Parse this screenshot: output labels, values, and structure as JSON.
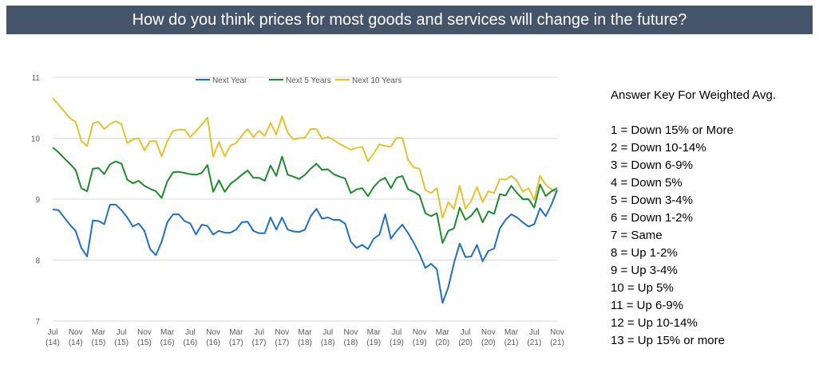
{
  "header": {
    "title": "How do you think prices for most goods and services will change in the future?"
  },
  "answer_key": {
    "title": "Answer Key For Weighted Avg.",
    "items": [
      "1 = Down 15% or More",
      "2 = Down 10-14%",
      "3 = Down 6-9%",
      "4 = Down 5%",
      "5 = Down 3-4%",
      "6 = Down 1-2%",
      "7 = Same",
      "8 = Up 1-2%",
      "9 = Up 3-4%",
      "10 = Up 5%",
      "11 = Up 6-9%",
      "12 = Up 10-14%",
      "13 = Up 15% or more"
    ]
  },
  "chart_data": {
    "type": "line",
    "title": "",
    "xlabel": "",
    "ylabel": "",
    "ylim": [
      7,
      11
    ],
    "yticks": [
      7,
      8,
      9,
      10,
      11
    ],
    "grid": true,
    "legend_position": "top-center",
    "x": [
      "Jul 2014",
      "Aug 2014",
      "Sep 2014",
      "Oct 2014",
      "Nov 2014",
      "Dec 2014",
      "Jan 2015",
      "Feb 2015",
      "Mar 2015",
      "Apr 2015",
      "May 2015",
      "Jun 2015",
      "Jul 2015",
      "Aug 2015",
      "Sep 2015",
      "Oct 2015",
      "Nov 2015",
      "Dec 2015",
      "Jan 2016",
      "Feb 2016",
      "Mar 2016",
      "Apr 2016",
      "May 2016",
      "Jun 2016",
      "Jul 2016",
      "Aug 2016",
      "Sep 2016",
      "Oct 2016",
      "Nov 2016",
      "Dec 2016",
      "Jan 2017",
      "Feb 2017",
      "Mar 2017",
      "Apr 2017",
      "May 2017",
      "Jun 2017",
      "Jul 2017",
      "Aug 2017",
      "Sep 2017",
      "Oct 2017",
      "Nov 2017",
      "Dec 2017",
      "Jan 2018",
      "Feb 2018",
      "Mar 2018",
      "Apr 2018",
      "May 2018",
      "Jun 2018",
      "Jul 2018",
      "Aug 2018",
      "Sep 2018",
      "Oct 2018",
      "Nov 2018",
      "Dec 2018",
      "Jan 2019",
      "Feb 2019",
      "Mar 2019",
      "Apr 2019",
      "May 2019",
      "Jun 2019",
      "Jul 2019",
      "Aug 2019",
      "Sep 2019",
      "Oct 2019",
      "Nov 2019",
      "Dec 2019",
      "Jan 2020",
      "Feb 2020",
      "Mar 2020",
      "Apr 2020",
      "May 2020",
      "Jun 2020",
      "Jul 2020",
      "Aug 2020",
      "Sep 2020",
      "Oct 2020",
      "Nov 2020",
      "Dec 2020",
      "Jan 2021",
      "Feb 2021",
      "Mar 2021",
      "Apr 2021",
      "May 2021",
      "Jun 2021",
      "Jul 2021",
      "Aug 2021",
      "Sep 2021",
      "Oct 2021",
      "Nov 2021"
    ],
    "tick_labels": [
      {
        "month": "Jul",
        "year": "(14)",
        "index": 0
      },
      {
        "month": "Nov",
        "year": "(14)",
        "index": 4
      },
      {
        "month": "Mar",
        "year": "(15)",
        "index": 8
      },
      {
        "month": "Jul",
        "year": "(15)",
        "index": 12
      },
      {
        "month": "Nov",
        "year": "(15)",
        "index": 16
      },
      {
        "month": "Mar",
        "year": "(16)",
        "index": 20
      },
      {
        "month": "Jul",
        "year": "(16)",
        "index": 24
      },
      {
        "month": "Nov",
        "year": "(16)",
        "index": 28
      },
      {
        "month": "Mar",
        "year": "(17)",
        "index": 32
      },
      {
        "month": "Jul",
        "year": "(17)",
        "index": 36
      },
      {
        "month": "Nov",
        "year": "(17)",
        "index": 40
      },
      {
        "month": "Mar",
        "year": "(18)",
        "index": 44
      },
      {
        "month": "Jul",
        "year": "(18)",
        "index": 48
      },
      {
        "month": "Nov",
        "year": "(18)",
        "index": 52
      },
      {
        "month": "Mar",
        "year": "(19)",
        "index": 56
      },
      {
        "month": "Jul",
        "year": "(19)",
        "index": 60
      },
      {
        "month": "Nov",
        "year": "(19)",
        "index": 64
      },
      {
        "month": "Mar",
        "year": "(20)",
        "index": 68
      },
      {
        "month": "Jul",
        "year": "(20)",
        "index": 72
      },
      {
        "month": "Nov",
        "year": "(20)",
        "index": 76
      },
      {
        "month": "Mar",
        "year": "(21)",
        "index": 80
      },
      {
        "month": "Jul",
        "year": "(21)",
        "index": 84
      },
      {
        "month": "Nov",
        "year": "(21)",
        "index": 88
      }
    ],
    "series": [
      {
        "name": "Next Year",
        "color": "#1f6fc5",
        "values": [
          8.83,
          8.82,
          8.7,
          8.58,
          8.48,
          8.2,
          8.06,
          8.65,
          8.64,
          8.59,
          8.91,
          8.91,
          8.82,
          8.7,
          8.55,
          8.6,
          8.48,
          8.18,
          8.08,
          8.3,
          8.62,
          8.75,
          8.75,
          8.64,
          8.6,
          8.42,
          8.58,
          8.56,
          8.42,
          8.48,
          8.45,
          8.45,
          8.5,
          8.62,
          8.63,
          8.48,
          8.44,
          8.44,
          8.7,
          8.5,
          8.7,
          8.5,
          8.47,
          8.46,
          8.5,
          8.72,
          8.84,
          8.68,
          8.7,
          8.66,
          8.66,
          8.6,
          8.3,
          8.2,
          8.25,
          8.18,
          8.35,
          8.42,
          8.75,
          8.35,
          8.48,
          8.58,
          8.44,
          8.28,
          8.1,
          7.87,
          7.94,
          7.85,
          7.3,
          7.55,
          7.95,
          8.27,
          8.05,
          8.06,
          8.25,
          7.98,
          8.15,
          8.19,
          8.52,
          8.66,
          8.75,
          8.7,
          8.62,
          8.55,
          8.59,
          8.85,
          8.72,
          8.91,
          9.15
        ]
      },
      {
        "name": "Next 5 Years",
        "color": "#1e8a2e",
        "values": [
          9.85,
          9.77,
          9.67,
          9.58,
          9.48,
          9.18,
          9.13,
          9.5,
          9.51,
          9.41,
          9.57,
          9.62,
          9.58,
          9.32,
          9.26,
          9.3,
          9.22,
          9.17,
          9.13,
          9.02,
          9.29,
          9.44,
          9.45,
          9.43,
          9.41,
          9.4,
          9.43,
          9.56,
          9.12,
          9.31,
          9.12,
          9.25,
          9.32,
          9.4,
          9.47,
          9.35,
          9.35,
          9.3,
          9.55,
          9.38,
          9.7,
          9.4,
          9.37,
          9.33,
          9.4,
          9.5,
          9.58,
          9.48,
          9.49,
          9.41,
          9.37,
          9.34,
          9.1,
          9.16,
          9.18,
          9.05,
          9.2,
          9.3,
          9.35,
          9.18,
          9.35,
          9.38,
          9.16,
          9.12,
          9.06,
          8.77,
          8.72,
          8.77,
          8.28,
          8.48,
          8.52,
          8.86,
          8.66,
          8.73,
          8.85,
          8.62,
          8.8,
          8.76,
          9.08,
          9.06,
          9.22,
          9.1,
          9.0,
          9.0,
          8.86,
          9.24,
          9.05,
          9.13,
          9.18
        ]
      },
      {
        "name": "Next 10 Years",
        "color": "#e3c22c",
        "values": [
          10.66,
          10.55,
          10.44,
          10.33,
          10.27,
          9.96,
          9.87,
          10.24,
          10.27,
          10.15,
          10.23,
          10.28,
          10.23,
          9.92,
          9.98,
          10.0,
          9.8,
          9.95,
          9.95,
          9.7,
          9.95,
          10.12,
          10.14,
          10.14,
          10.02,
          10.12,
          10.22,
          10.34,
          9.7,
          9.94,
          9.7,
          9.88,
          9.92,
          10.04,
          10.15,
          10.02,
          10.12,
          10.04,
          10.25,
          10.06,
          10.36,
          10.09,
          9.98,
          10.0,
          10.01,
          10.15,
          10.15,
          9.99,
          10.02,
          9.97,
          9.91,
          9.86,
          9.81,
          9.84,
          9.86,
          9.62,
          9.75,
          9.9,
          9.87,
          9.86,
          10.01,
          10.0,
          9.64,
          9.52,
          9.5,
          9.15,
          9.1,
          9.18,
          8.69,
          8.95,
          8.84,
          9.22,
          8.84,
          8.97,
          9.2,
          8.95,
          9.13,
          9.1,
          9.33,
          9.32,
          9.38,
          9.3,
          9.12,
          9.18,
          8.99,
          9.38,
          9.24,
          9.16,
          9.11
        ]
      }
    ]
  }
}
